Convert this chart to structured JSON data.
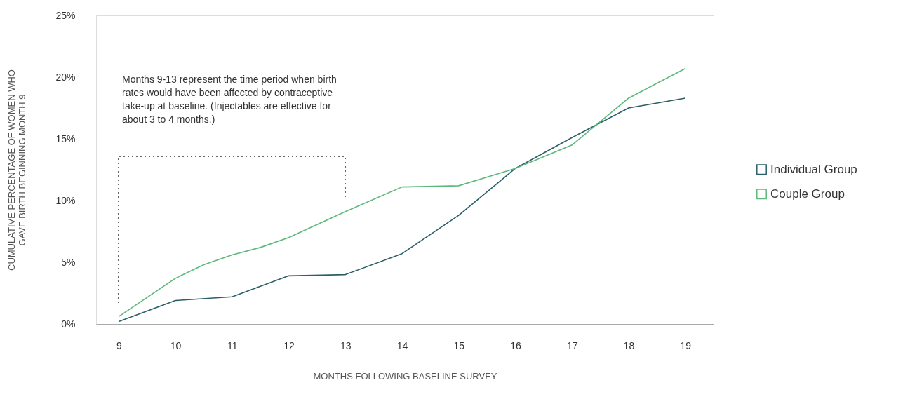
{
  "chart_data": {
    "type": "line",
    "xlabel": "MONTHS FOLLOWING BASELINE SURVEY",
    "ylabel": "CUMULATIVE PERCENTAGE OF WOMEN WHO\nGAVE BIRTH BEGINNING MONTH 9",
    "xlim": [
      8.6,
      19.5
    ],
    "xticks": [
      9,
      10,
      11,
      12,
      13,
      14,
      15,
      16,
      17,
      18,
      19
    ],
    "ylim": [
      0,
      25
    ],
    "yticks": [
      {
        "value": 0,
        "label": "0%"
      },
      {
        "value": 5,
        "label": "5%"
      },
      {
        "value": 10,
        "label": "10%"
      },
      {
        "value": 15,
        "label": "15%"
      },
      {
        "value": 20,
        "label": "20%"
      },
      {
        "value": 25,
        "label": "25%"
      }
    ],
    "grid": false,
    "legend": "right",
    "marker": "none",
    "line_style": "solid",
    "series": [
      {
        "name": "Individual Group",
        "color": "#2a5f6a",
        "x": [
          9,
          10,
          11,
          12,
          13,
          14,
          15,
          16,
          17,
          18,
          19
        ],
        "values": [
          0.2,
          1.9,
          2.2,
          3.9,
          4.0,
          5.7,
          8.8,
          12.6,
          15.1,
          17.5,
          18.3
        ]
      },
      {
        "name": "Couple Group",
        "color": "#5bb97b",
        "x": [
          9,
          10,
          10.5,
          11,
          11.5,
          12,
          13,
          14,
          15,
          16,
          17,
          18,
          18.5,
          19
        ],
        "values": [
          0.6,
          3.7,
          4.8,
          5.6,
          6.2,
          7.0,
          9.1,
          11.1,
          11.2,
          12.6,
          14.5,
          18.3,
          19.5,
          20.7
        ]
      }
    ],
    "annotations": [
      "Months 9-13 represent the time period when birth\nrates would have been affected by contraceptive\ntake-up at baseline. (Injectables are effective for\nabout 3 to 4 months.)"
    ]
  }
}
